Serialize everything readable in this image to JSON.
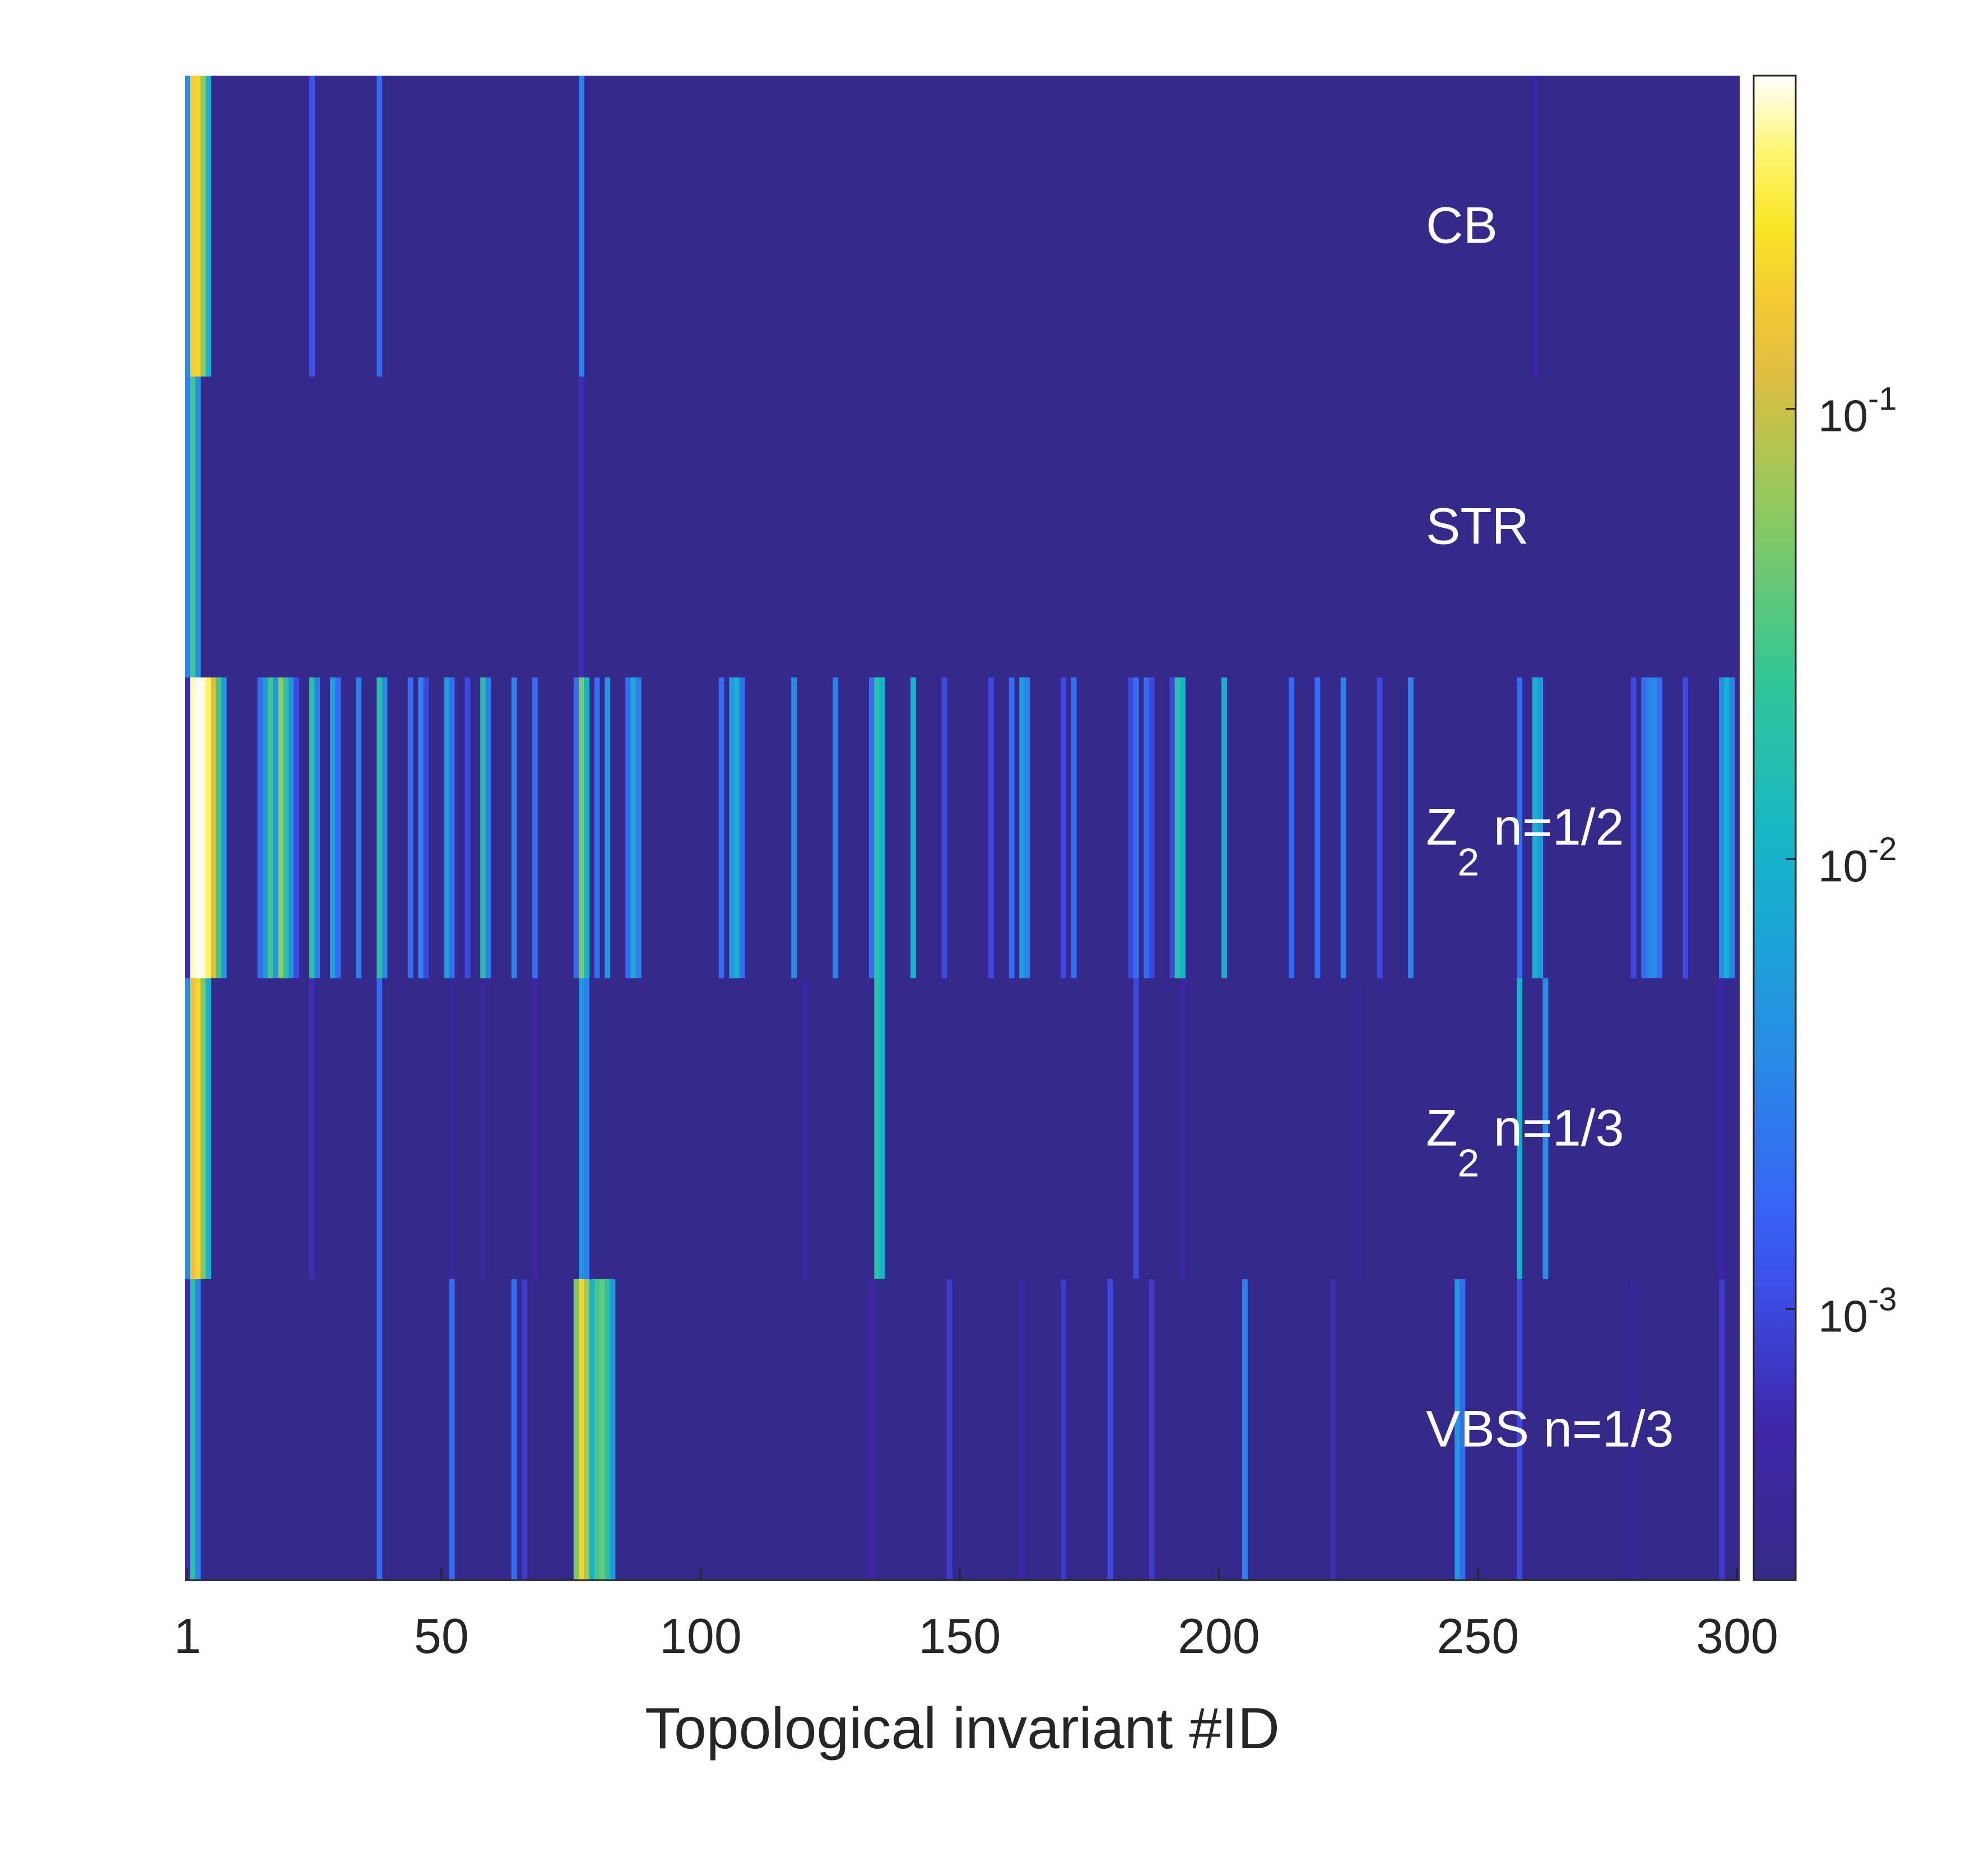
{
  "chart_data": {
    "type": "heatmap",
    "xlabel": "Topological invariant #ID",
    "x_ticks": [
      1,
      50,
      100,
      150,
      200,
      250,
      300
    ],
    "xlim": [
      1,
      300
    ],
    "rows": [
      {
        "label": "CB",
        "label_sub": "",
        "label_rest": ""
      },
      {
        "label": "STR",
        "label_sub": "",
        "label_rest": ""
      },
      {
        "label": "Z",
        "label_sub": "2",
        "label_rest": " n=1/2"
      },
      {
        "label": "Z",
        "label_sub": "2",
        "label_rest": " n=1/3"
      },
      {
        "label": "VBS n=1/3",
        "label_sub": "",
        "label_rest": ""
      }
    ],
    "colorbar": {
      "scale": "log",
      "range": [
        0.00025,
        0.55
      ],
      "ticks": [
        {
          "base": "10",
          "exp": "-3",
          "value": 0.001
        },
        {
          "base": "10",
          "exp": "-2",
          "value": 0.01
        },
        {
          "base": "10",
          "exp": "-1",
          "value": 0.1
        }
      ]
    },
    "background_value": 0.00028,
    "cells": [
      [
        [
          1,
          0.004
        ],
        [
          2,
          0.18
        ],
        [
          3,
          0.2
        ],
        [
          4,
          0.06
        ],
        [
          5,
          0.01
        ],
        [
          25,
          0.0012
        ],
        [
          38,
          0.002
        ],
        [
          77,
          0.003
        ],
        [
          261,
          0.0005
        ]
      ],
      [
        [
          1,
          0.003
        ],
        [
          2,
          0.03
        ],
        [
          3,
          0.004
        ],
        [
          77,
          0.0006
        ]
      ],
      [
        [
          1,
          0.0006
        ],
        [
          2,
          0.45
        ],
        [
          3,
          0.55
        ],
        [
          4,
          0.5
        ],
        [
          5,
          0.35
        ],
        [
          6,
          0.12
        ],
        [
          7,
          0.03
        ],
        [
          8,
          0.005
        ],
        [
          15,
          0.002
        ],
        [
          16,
          0.005
        ],
        [
          17,
          0.03
        ],
        [
          18,
          0.005
        ],
        [
          19,
          0.06
        ],
        [
          20,
          0.02
        ],
        [
          21,
          0.004
        ],
        [
          22,
          0.001
        ],
        [
          25,
          0.02
        ],
        [
          26,
          0.003
        ],
        [
          29,
          0.006
        ],
        [
          30,
          0.002
        ],
        [
          34,
          0.003
        ],
        [
          38,
          0.02
        ],
        [
          39,
          0.004
        ],
        [
          44,
          0.002
        ],
        [
          46,
          0.003
        ],
        [
          47,
          0.001
        ],
        [
          51,
          0.006
        ],
        [
          52,
          0.002
        ],
        [
          55,
          0.001
        ],
        [
          58,
          0.02
        ],
        [
          59,
          0.003
        ],
        [
          64,
          0.003
        ],
        [
          68,
          0.002
        ],
        [
          76,
          0.002
        ],
        [
          77,
          0.05
        ],
        [
          78,
          0.01
        ],
        [
          80,
          0.002
        ],
        [
          82,
          0.005
        ],
        [
          86,
          0.002
        ],
        [
          87,
          0.008
        ],
        [
          88,
          0.003
        ],
        [
          104,
          0.002
        ],
        [
          106,
          0.005
        ],
        [
          107,
          0.01
        ],
        [
          108,
          0.002
        ],
        [
          118,
          0.004
        ],
        [
          126,
          0.003
        ],
        [
          133,
          0.002
        ],
        [
          134,
          0.02
        ],
        [
          135,
          0.01
        ],
        [
          141,
          0.01
        ],
        [
          147,
          0.001
        ],
        [
          156,
          0.001
        ],
        [
          160,
          0.002
        ],
        [
          162,
          0.006
        ],
        [
          163,
          0.003
        ],
        [
          170,
          0.001
        ],
        [
          172,
          0.002
        ],
        [
          183,
          0.001
        ],
        [
          184,
          0.002
        ],
        [
          186,
          0.002
        ],
        [
          187,
          0.001
        ],
        [
          191,
          0.001
        ],
        [
          192,
          0.02
        ],
        [
          193,
          0.01
        ],
        [
          201,
          0.01
        ],
        [
          214,
          0.002
        ],
        [
          219,
          0.002
        ],
        [
          224,
          0.003
        ],
        [
          231,
          0.001
        ],
        [
          237,
          0.003
        ],
        [
          258,
          0.002
        ],
        [
          261,
          0.01
        ],
        [
          262,
          0.005
        ],
        [
          280,
          0.001
        ],
        [
          282,
          0.002
        ],
        [
          283,
          0.003
        ],
        [
          284,
          0.004
        ],
        [
          285,
          0.002
        ],
        [
          290,
          0.001
        ],
        [
          297,
          0.004
        ],
        [
          298,
          0.01
        ],
        [
          299,
          0.003
        ]
      ],
      [
        [
          1,
          0.004
        ],
        [
          2,
          0.15
        ],
        [
          3,
          0.2
        ],
        [
          4,
          0.05
        ],
        [
          5,
          0.01
        ],
        [
          25,
          0.0006
        ],
        [
          38,
          0.002
        ],
        [
          52,
          0.0004
        ],
        [
          58,
          0.0004
        ],
        [
          68,
          0.0005
        ],
        [
          77,
          0.005
        ],
        [
          78,
          0.003
        ],
        [
          120,
          0.0005
        ],
        [
          134,
          0.02
        ],
        [
          135,
          0.01
        ],
        [
          184,
          0.001
        ],
        [
          193,
          0.0005
        ],
        [
          227,
          0.0004
        ],
        [
          258,
          0.01
        ],
        [
          263,
          0.004
        ],
        [
          297,
          0.0005
        ]
      ],
      [
        [
          1,
          0.0006
        ],
        [
          2,
          0.02
        ],
        [
          3,
          0.003
        ],
        [
          38,
          0.002
        ],
        [
          52,
          0.002
        ],
        [
          64,
          0.002
        ],
        [
          66,
          0.0008
        ],
        [
          76,
          0.05
        ],
        [
          77,
          0.2
        ],
        [
          78,
          0.07
        ],
        [
          79,
          0.01
        ],
        [
          80,
          0.03
        ],
        [
          81,
          0.04
        ],
        [
          82,
          0.02
        ],
        [
          83,
          0.005
        ],
        [
          133,
          0.0005
        ],
        [
          148,
          0.0008
        ],
        [
          162,
          0.0005
        ],
        [
          170,
          0.0008
        ],
        [
          179,
          0.001
        ],
        [
          187,
          0.0008
        ],
        [
          205,
          0.003
        ],
        [
          222,
          0.0006
        ],
        [
          246,
          0.005
        ],
        [
          247,
          0.002
        ],
        [
          258,
          0.001
        ],
        [
          280,
          0.0004
        ],
        [
          297,
          0.0008
        ]
      ]
    ]
  }
}
